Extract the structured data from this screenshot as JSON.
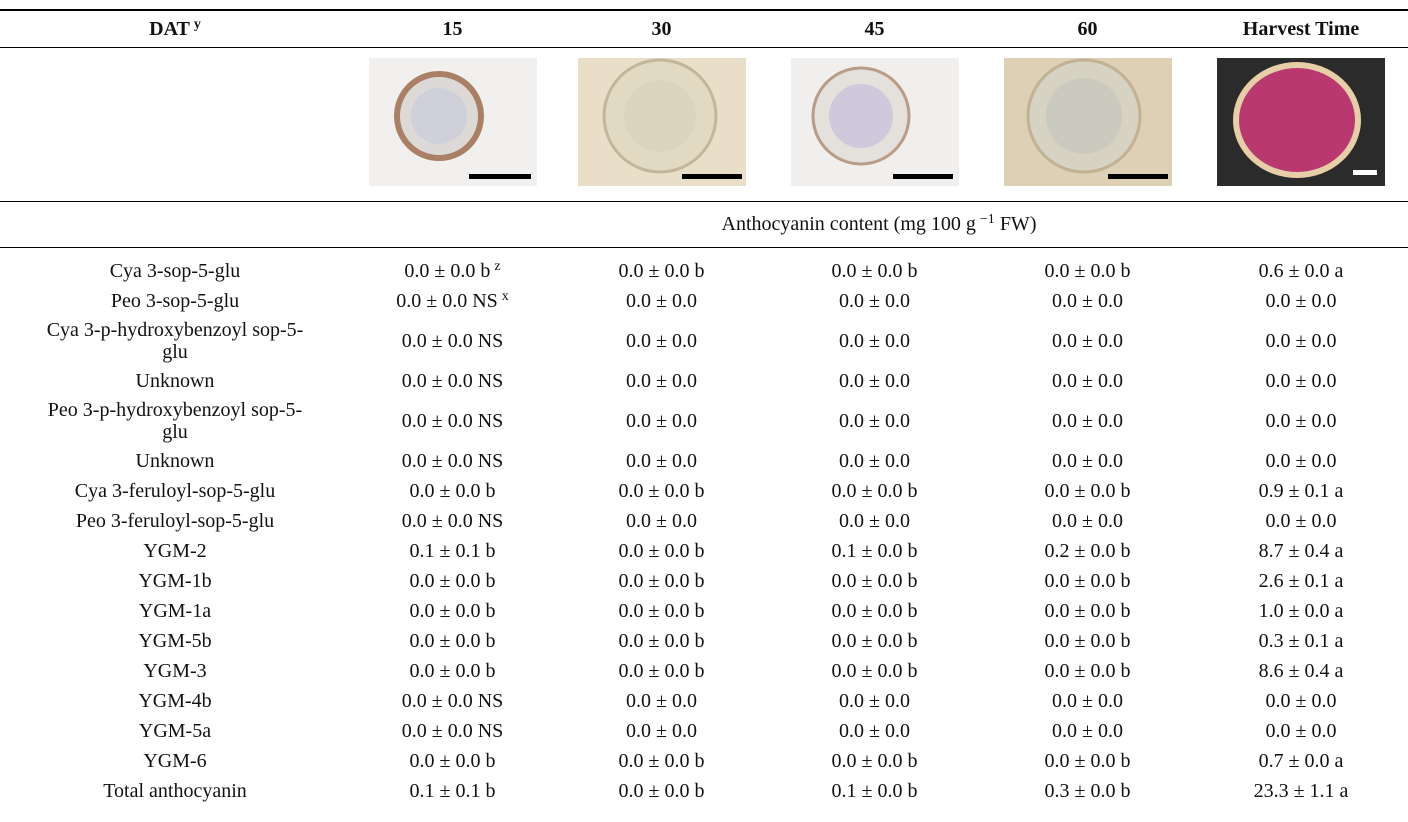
{
  "header": {
    "label": "DAT",
    "sup": "y",
    "columns": [
      "15",
      "30",
      "45",
      "60",
      "Harvest Time"
    ]
  },
  "unit": {
    "before": "Anthocyanin content (mg 100 g",
    "sup": "−1",
    "after": "FW)"
  },
  "table": {
    "rows": [
      {
        "label": "Cya 3-sop-5-glu",
        "cells": [
          {
            "text": "0.0 ± 0.0 b",
            "sup": "z"
          },
          "0.0 ± 0.0 b",
          "0.0 ± 0.0 b",
          "0.0 ± 0.0 b",
          "0.6 ± 0.0 a"
        ]
      },
      {
        "label": "Peo 3-sop-5-glu",
        "cells": [
          {
            "text": "0.0 ± 0.0 NS",
            "sup": "x"
          },
          "0.0 ± 0.0",
          "0.0 ± 0.0",
          "0.0 ± 0.0",
          "0.0 ± 0.0"
        ]
      },
      {
        "label": "Cya 3-p-hydroxybenzoyl sop-5-glu",
        "cells": [
          "0.0 ± 0.0 NS",
          "0.0 ± 0.0",
          "0.0 ± 0.0",
          "0.0 ± 0.0",
          "0.0 ± 0.0"
        ]
      },
      {
        "label": "Unknown",
        "cells": [
          "0.0 ± 0.0 NS",
          "0.0 ± 0.0",
          "0.0 ± 0.0",
          "0.0 ± 0.0",
          "0.0 ± 0.0"
        ]
      },
      {
        "label": "Peo 3-p-hydroxybenzoyl sop-5-glu",
        "cells": [
          "0.0 ± 0.0 NS",
          "0.0 ± 0.0",
          "0.0 ± 0.0",
          "0.0 ± 0.0",
          "0.0 ± 0.0"
        ]
      },
      {
        "label": "Unknown",
        "cells": [
          "0.0 ± 0.0 NS",
          "0.0 ± 0.0",
          "0.0 ± 0.0",
          "0.0 ± 0.0",
          "0.0 ± 0.0"
        ]
      },
      {
        "label": "Cya 3-feruloyl-sop-5-glu",
        "cells": [
          "0.0 ± 0.0 b",
          "0.0 ± 0.0 b",
          "0.0 ± 0.0 b",
          "0.0 ± 0.0 b",
          "0.9 ± 0.1 a"
        ]
      },
      {
        "label": "Peo 3-feruloyl-sop-5-glu",
        "cells": [
          "0.0 ± 0.0 NS",
          "0.0 ± 0.0",
          "0.0 ± 0.0",
          "0.0 ± 0.0",
          "0.0 ± 0.0"
        ]
      },
      {
        "label": "YGM-2",
        "cells": [
          "0.1 ± 0.1 b",
          "0.0 ± 0.0 b",
          "0.1 ± 0.0 b",
          "0.2 ± 0.0 b",
          "8.7 ± 0.4 a"
        ]
      },
      {
        "label": "YGM-1b",
        "cells": [
          "0.0 ± 0.0 b",
          "0.0 ± 0.0 b",
          "0.0 ± 0.0 b",
          "0.0 ± 0.0 b",
          "2.6 ± 0.1 a"
        ]
      },
      {
        "label": "YGM-1a",
        "cells": [
          "0.0 ± 0.0 b",
          "0.0 ± 0.0 b",
          "0.0 ± 0.0 b",
          "0.0 ± 0.0 b",
          "1.0 ± 0.0 a"
        ]
      },
      {
        "label": "YGM-5b",
        "cells": [
          "0.0 ± 0.0 b",
          "0.0 ± 0.0 b",
          "0.0 ± 0.0 b",
          "0.0 ± 0.0 b",
          "0.3 ± 0.1 a"
        ]
      },
      {
        "label": "YGM-3",
        "cells": [
          "0.0 ± 0.0 b",
          "0.0 ± 0.0 b",
          "0.0 ± 0.0 b",
          "0.0 ± 0.0 b",
          "8.6 ± 0.4 a"
        ]
      },
      {
        "label": "YGM-4b",
        "cells": [
          "0.0 ± 0.0 NS",
          "0.0 ± 0.0",
          "0.0 ± 0.0",
          "0.0 ± 0.0",
          "0.0 ± 0.0"
        ]
      },
      {
        "label": "YGM-5a",
        "cells": [
          "0.0 ± 0.0 NS",
          "0.0 ± 0.0",
          "0.0 ± 0.0",
          "0.0 ± 0.0",
          "0.0 ± 0.0"
        ]
      },
      {
        "label": "YGM-6",
        "cells": [
          "0.0 ± 0.0 b",
          "0.0 ± 0.0 b",
          "0.0 ± 0.0 b",
          "0.0 ± 0.0 b",
          "0.7 ± 0.0 a"
        ]
      },
      {
        "label": "Total anthocyanin",
        "cells": [
          "0.1 ± 0.1 b",
          "0.0 ± 0.0 b",
          "0.1 ± 0.0 b",
          "0.3 ± 0.0 b",
          "23.3 ± 1.1 a"
        ]
      }
    ]
  }
}
